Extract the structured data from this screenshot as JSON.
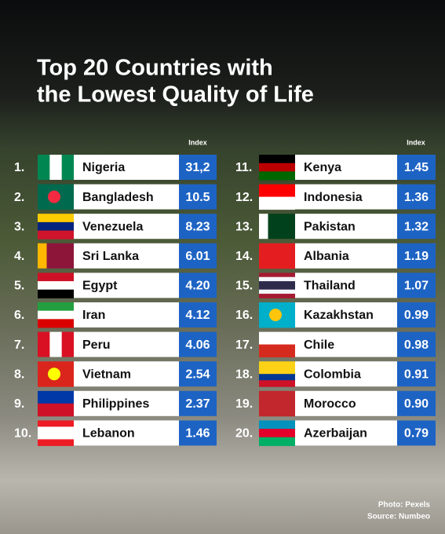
{
  "title": [
    "Top 20 Countries with",
    "the Lowest Quality of Life"
  ],
  "header": {
    "left": "Index",
    "right": "Index"
  },
  "rows": [
    [
      "1.",
      "Nigeria",
      "31,2"
    ],
    [
      "2.",
      "Bangladesh",
      "10.5"
    ],
    [
      "3.",
      "Venezuela",
      "8.23"
    ],
    [
      "4.",
      "Sri Lanka",
      "6.01"
    ],
    [
      "5.",
      "Egypt",
      "4.20"
    ],
    [
      "6.",
      "Iran",
      "4.12"
    ],
    [
      "7.",
      "Peru",
      "4.06"
    ],
    [
      "8.",
      "Vietnam",
      "2.54"
    ],
    [
      "9.",
      "Philippines",
      "2.37"
    ],
    [
      "10.",
      "Lebanon",
      "1.46"
    ],
    [
      "11.",
      "Kenya",
      "1.45"
    ],
    [
      "12.",
      "Indonesia",
      "1.36"
    ],
    [
      "13.",
      "Pakistan",
      "1.32"
    ],
    [
      "14.",
      "Albania",
      "1.19"
    ],
    [
      "15.",
      "Thailand",
      "1.07"
    ],
    [
      "16.",
      "Kazakhstan",
      "0.99"
    ],
    [
      "17.",
      "Chile",
      "0.98"
    ],
    [
      "18.",
      "Colombia",
      "0.91"
    ],
    [
      "19.",
      "Morocco",
      "0.90"
    ],
    [
      "20.",
      "Azerbaijan",
      "0.79"
    ]
  ],
  "footer": [
    "Photo: Pexels",
    "Source: Numbeo"
  ]
}
